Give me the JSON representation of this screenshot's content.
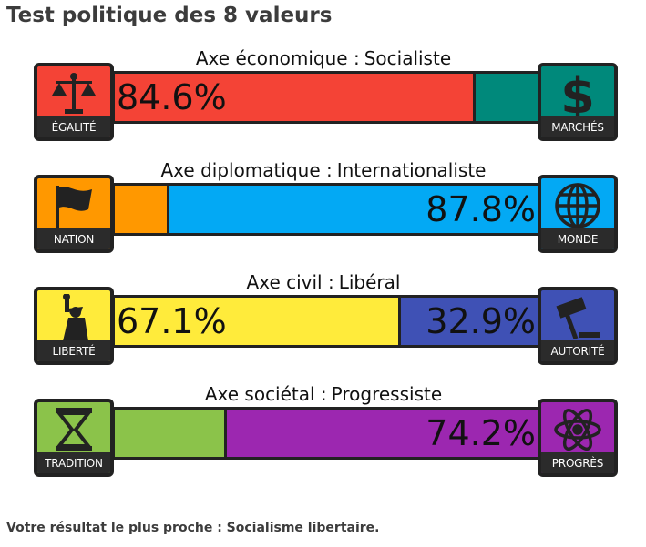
{
  "page": {
    "title": "Test politique des 8 valeurs"
  },
  "axes": [
    {
      "label_prefix": "Axe économique :",
      "label_value": "Socialiste",
      "left": {
        "name": "ÉGALITÉ",
        "icon": "scales-icon",
        "value": 84.6,
        "display": "84.6%",
        "color": "#f44336",
        "show_pct": true
      },
      "right": {
        "name": "MARCHÉS",
        "icon": "dollar-icon",
        "value": 15.4,
        "display": "15.4%",
        "color": "#00897b",
        "show_pct": false
      }
    },
    {
      "label_prefix": "Axe diplomatique :",
      "label_value": "Internationaliste",
      "left": {
        "name": "NATION",
        "icon": "flag-icon",
        "value": 12.2,
        "display": "12.2%",
        "color": "#ff9800",
        "show_pct": false
      },
      "right": {
        "name": "MONDE",
        "icon": "globe-icon",
        "value": 87.8,
        "display": "87.8%",
        "color": "#03a9f4",
        "show_pct": true
      }
    },
    {
      "label_prefix": "Axe civil :",
      "label_value": "Libéral",
      "left": {
        "name": "LIBERTÉ",
        "icon": "statue-of-liberty-icon",
        "value": 67.1,
        "display": "67.1%",
        "color": "#ffeb3b",
        "show_pct": true
      },
      "right": {
        "name": "AUTORITÉ",
        "icon": "gavel-icon",
        "value": 32.9,
        "display": "32.9%",
        "color": "#3f51b5",
        "show_pct": true
      }
    },
    {
      "label_prefix": "Axe sociétal :",
      "label_value": "Progressiste",
      "left": {
        "name": "TRADITION",
        "icon": "hourglass-icon",
        "value": 25.8,
        "display": "25.8%",
        "color": "#8bc34a",
        "show_pct": false
      },
      "right": {
        "name": "PROGRÈS",
        "icon": "atom-icon",
        "value": 74.2,
        "display": "74.2%",
        "color": "#9c27b0",
        "show_pct": true
      }
    }
  ],
  "result": {
    "text": "Votre résultat le plus proche : Socialisme libertaire."
  }
}
